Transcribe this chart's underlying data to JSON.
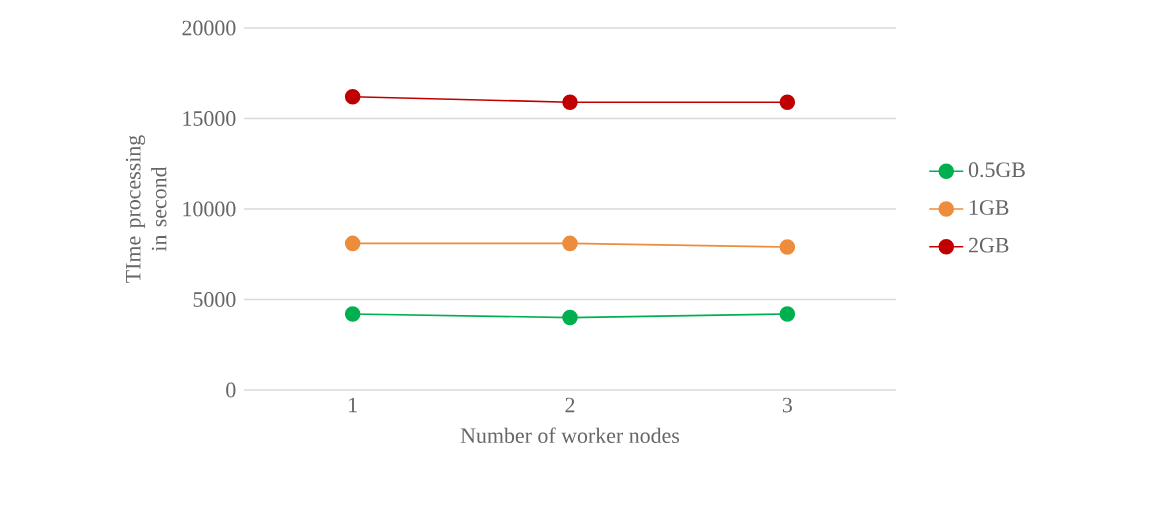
{
  "chart_data": {
    "type": "line",
    "xlabel": "Number of worker nodes",
    "ylabel": "TIme processing in second",
    "categories": [
      "1",
      "2",
      "3"
    ],
    "series": [
      {
        "name": "0.5GB",
        "color": "#00b050",
        "values": [
          4200,
          4000,
          4200
        ]
      },
      {
        "name": "1GB",
        "color": "#ed8d3c",
        "values": [
          8100,
          8100,
          7900
        ]
      },
      {
        "name": "2GB",
        "color": "#c00000",
        "values": [
          16200,
          15900,
          15900
        ]
      }
    ],
    "ylim": [
      0,
      20000
    ],
    "yticks": [
      0,
      5000,
      10000,
      15000,
      20000
    ],
    "grid": "y",
    "legend": "right",
    "marker": "circle",
    "line_style": "solid"
  }
}
